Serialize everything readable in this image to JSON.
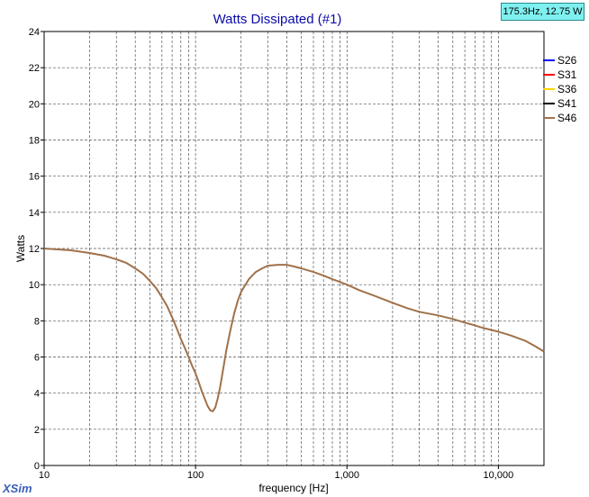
{
  "cursor_readout": "175.3Hz, 12.75 W",
  "brand": "XSim",
  "colors": {
    "title": "#0a0aa8",
    "grid": "#555555",
    "plot_line": "#a0714a",
    "readout_bg": "#7ff0f0"
  },
  "chart_data": {
    "type": "line",
    "title": "Watts Dissipated (#1)",
    "xlabel": "frequency [Hz]",
    "ylabel": "Watts",
    "x_scale": "log",
    "xlim": [
      10,
      20000
    ],
    "ylim": [
      0,
      24
    ],
    "x_tick_labels": [
      {
        "value": 10,
        "label": "10"
      },
      {
        "value": 100,
        "label": "100"
      },
      {
        "value": 1000,
        "label": "1,000"
      },
      {
        "value": 10000,
        "label": "10,000"
      }
    ],
    "y_ticks": [
      0,
      2,
      4,
      6,
      8,
      10,
      12,
      14,
      16,
      18,
      20,
      22,
      24
    ],
    "grid": true,
    "legend_position": "right",
    "series": [
      {
        "name": "S26",
        "color": "#0000ff",
        "x": [],
        "y": []
      },
      {
        "name": "S31",
        "color": "#ff0000",
        "x": [],
        "y": []
      },
      {
        "name": "S36",
        "color": "#ffd700",
        "x": [],
        "y": []
      },
      {
        "name": "S41",
        "color": "#000000",
        "x": [],
        "y": []
      },
      {
        "name": "S46",
        "color": "#a0714a",
        "x": [
          10,
          15,
          20,
          25,
          30,
          35,
          40,
          45,
          50,
          55,
          60,
          65,
          70,
          75,
          80,
          85,
          90,
          95,
          100,
          105,
          110,
          115,
          120,
          125,
          130,
          135,
          140,
          145,
          150,
          160,
          170,
          180,
          190,
          200,
          225,
          250,
          275,
          300,
          350,
          400,
          450,
          500,
          600,
          700,
          800,
          900,
          1000,
          1200,
          1500,
          2000,
          2500,
          3000,
          4000,
          5000,
          6000,
          7000,
          8000,
          10000,
          12000,
          15000,
          17500,
          20000
        ],
        "y": [
          12.0,
          11.9,
          11.75,
          11.6,
          11.4,
          11.2,
          10.9,
          10.6,
          10.2,
          9.8,
          9.3,
          8.8,
          8.2,
          7.6,
          7.0,
          6.5,
          6.0,
          5.5,
          5.1,
          4.6,
          4.1,
          3.7,
          3.3,
          3.05,
          3.0,
          3.2,
          3.7,
          4.3,
          5.0,
          6.4,
          7.5,
          8.4,
          9.1,
          9.6,
          10.3,
          10.7,
          10.9,
          11.05,
          11.1,
          11.1,
          11.0,
          10.9,
          10.7,
          10.5,
          10.3,
          10.15,
          10.0,
          9.7,
          9.4,
          9.0,
          8.7,
          8.5,
          8.3,
          8.1,
          7.9,
          7.75,
          7.6,
          7.4,
          7.2,
          6.9,
          6.6,
          6.3
        ]
      }
    ]
  }
}
